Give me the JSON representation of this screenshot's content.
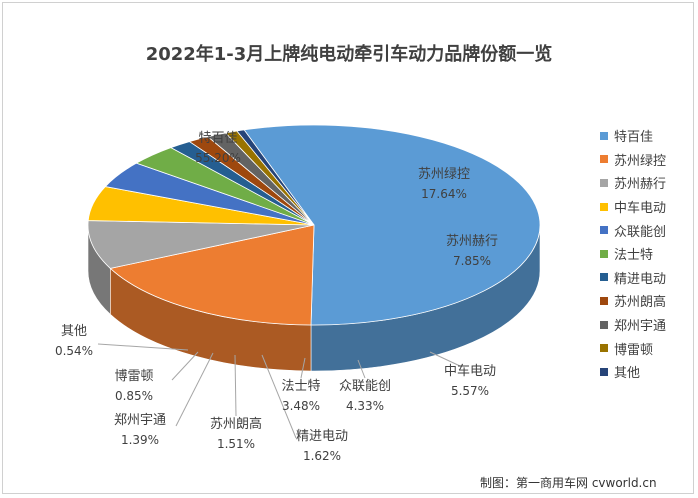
{
  "title": "2022年1-3月上牌纯电动牵引车动力品牌份额一览",
  "credit": "制图：第一商用车网 cvworld.cn",
  "chart_data": {
    "type": "pie",
    "style": "3d",
    "title": "2022年1-3月上牌纯电动牵引车动力品牌份额一览",
    "legend_position": "right",
    "slices": [
      {
        "name": "特百佳",
        "value": 55.2,
        "label": "55.20%",
        "color": "#5b9bd5"
      },
      {
        "name": "苏州绿控",
        "value": 17.64,
        "label": "17.64%",
        "color": "#ed7d31"
      },
      {
        "name": "苏州赫行",
        "value": 7.85,
        "label": "7.85%",
        "color": "#a5a5a5"
      },
      {
        "name": "中车电动",
        "value": 5.57,
        "label": "5.57%",
        "color": "#ffc000"
      },
      {
        "name": "众联能创",
        "value": 4.33,
        "label": "4.33%",
        "color": "#4472c4"
      },
      {
        "name": "法士特",
        "value": 3.48,
        "label": "3.48%",
        "color": "#70ad47"
      },
      {
        "name": "精进电动",
        "value": 1.62,
        "label": "1.62%",
        "color": "#255e91"
      },
      {
        "name": "苏州朗高",
        "value": 1.51,
        "label": "1.51%",
        "color": "#9e480e"
      },
      {
        "name": "郑州宇通",
        "value": 1.39,
        "label": "1.39%",
        "color": "#636363"
      },
      {
        "name": "博雷顿",
        "value": 0.85,
        "label": "0.85%",
        "color": "#997300"
      },
      {
        "name": "其他",
        "value": 0.54,
        "label": "0.54%",
        "color": "#264478"
      }
    ]
  }
}
